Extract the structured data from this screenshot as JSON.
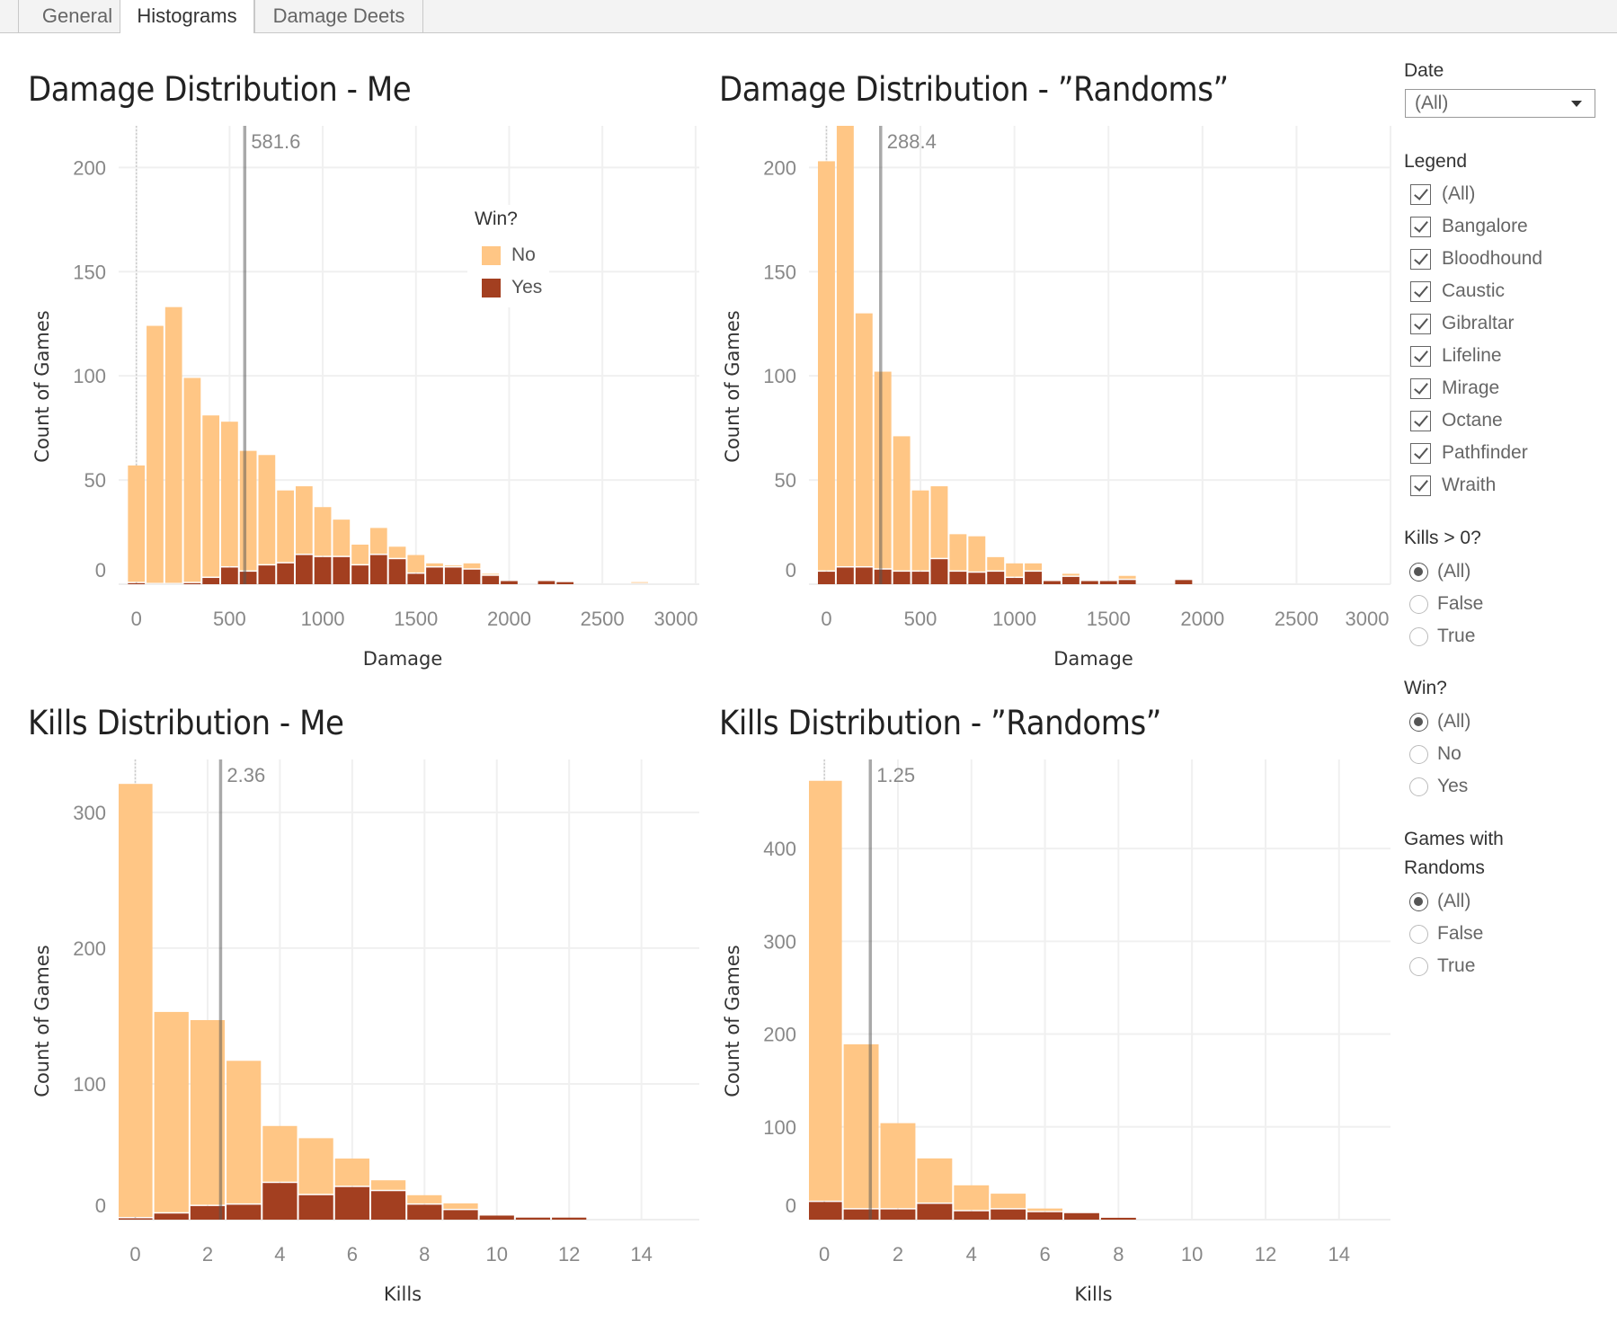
{
  "tabs": [
    {
      "label": "General"
    },
    {
      "label": "Histograms",
      "active": true
    },
    {
      "label": "Damage Deets"
    }
  ],
  "colors": {
    "no": "#FFC685",
    "yes": "#A33F20",
    "mean_line": "#555555"
  },
  "legend": {
    "title": "Win?",
    "items": [
      {
        "label": "No",
        "color": "#FFC685"
      },
      {
        "label": "Yes",
        "color": "#A33F20"
      }
    ]
  },
  "charts": [
    {
      "title": "Damage Distribution - Me",
      "ylabel": "Count of Games",
      "xlabel": "Damage",
      "mean_label": "581.6"
    },
    {
      "title": "Damage Distribution  - ”Randoms”",
      "ylabel": "Count of Games",
      "xlabel": "Damage",
      "mean_label": "288.4"
    },
    {
      "title": "Kills Distribution - Me",
      "ylabel": "Count of Games",
      "xlabel": "Kills",
      "mean_label": "2.36"
    },
    {
      "title": "Kills Distribution - ”Randoms”",
      "ylabel": "Count of Games",
      "xlabel": "Kills",
      "mean_label": "1.25"
    }
  ],
  "chart_data": [
    {
      "type": "bar",
      "stacked": true,
      "title": "Damage Distribution - Me",
      "xlabel": "Damage",
      "ylabel": "Count of Games",
      "bin_width": 100,
      "x": [
        0,
        100,
        200,
        300,
        400,
        500,
        600,
        700,
        800,
        900,
        1000,
        1100,
        1200,
        1300,
        1400,
        1500,
        1600,
        1700,
        1800,
        1900,
        2000,
        2100,
        2200,
        2300,
        2400,
        2500,
        2600,
        2700
      ],
      "series": [
        {
          "name": "No",
          "values": [
            56.5,
            124,
            133,
            98.5,
            78,
            70,
            58,
            53,
            35,
            33,
            24,
            18,
            10,
            13,
            6,
            9,
            2,
            1,
            3,
            1,
            0,
            0,
            0,
            0,
            0,
            0.4,
            0,
            1
          ]
        },
        {
          "name": "Yes",
          "values": [
            0.5,
            0,
            0,
            0.5,
            3,
            8,
            6,
            9,
            10,
            14,
            13,
            13,
            9,
            14,
            12,
            5,
            8,
            8,
            7,
            4,
            1.5,
            0,
            1.5,
            1,
            0,
            0,
            0,
            0
          ]
        }
      ],
      "mean": 581.6,
      "xlim": [
        -95,
        3020
      ],
      "ylim": [
        0,
        220
      ],
      "xticks": [
        "0",
        "500",
        "1000",
        "1500",
        "2000",
        "2500",
        "3000"
      ],
      "yticks": [
        "0",
        "50",
        "100",
        "150",
        "200"
      ],
      "grid": true,
      "legend": "top-right"
    },
    {
      "type": "bar",
      "stacked": true,
      "title": "Damage Distribution  - ”Randoms”",
      "xlabel": "Damage",
      "ylabel": "Count of Games",
      "bin_width": 100,
      "x": [
        0,
        100,
        200,
        300,
        400,
        500,
        600,
        700,
        800,
        900,
        1000,
        1100,
        1200,
        1300,
        1400,
        1500,
        1600,
        1700,
        1800,
        1900
      ],
      "series": [
        {
          "name": "No",
          "values": [
            197,
            237,
            122,
            95,
            65,
            39,
            35,
            18,
            17.5,
            7,
            7,
            4,
            0,
            1.5,
            0,
            0,
            2,
            0,
            0.4,
            0
          ]
        },
        {
          "name": "Yes",
          "values": [
            6,
            8,
            8,
            7,
            6,
            6,
            12,
            6,
            5.5,
            6,
            3,
            6,
            1.5,
            3.5,
            1.5,
            1.5,
            2,
            0,
            0,
            2
          ]
        }
      ],
      "mean": 288.4,
      "xlim": [
        -93,
        3000
      ],
      "ylim": [
        0,
        220
      ],
      "xticks": [
        "0",
        "500",
        "1000",
        "1500",
        "2000",
        "2500",
        "3000"
      ],
      "yticks": [
        "0",
        "50",
        "100",
        "150",
        "200"
      ],
      "grid": true
    },
    {
      "type": "bar",
      "stacked": true,
      "title": "Kills Distribution - Me",
      "xlabel": "Kills",
      "ylabel": "Count of Games",
      "bin_width": 1,
      "x": [
        0,
        1,
        2,
        3,
        4,
        5,
        6,
        7,
        8,
        9,
        10,
        11,
        12
      ],
      "series": [
        {
          "name": "No",
          "values": [
            320,
            148.5,
            137,
            106,
            42,
            42,
            21,
            8,
            7,
            5,
            0,
            0,
            0
          ]
        },
        {
          "name": "Yes",
          "values": [
            1,
            4.5,
            10,
            11,
            27,
            18,
            24,
            21,
            11,
            7,
            3,
            1.5,
            1.5
          ]
        }
      ],
      "mean": 2.36,
      "xlim": [
        -0.46,
        15.6
      ],
      "ylim": [
        0,
        339
      ],
      "xticks": [
        "0",
        "2",
        "4",
        "6",
        "8",
        "10",
        "12",
        "14"
      ],
      "yticks": [
        "0",
        "100",
        "200",
        "300"
      ],
      "grid": true
    },
    {
      "type": "bar",
      "stacked": true,
      "title": "Kills Distribution - ”Randoms”",
      "xlabel": "Kills",
      "ylabel": "Count of Games",
      "bin_width": 1,
      "x": [
        0,
        1,
        2,
        3,
        4,
        5,
        6,
        7,
        8
      ],
      "series": [
        {
          "name": "No",
          "values": [
            454,
            178,
            93,
            49,
            28,
            17,
            4,
            0,
            1
          ]
        },
        {
          "name": "Yes",
          "values": [
            19,
            11,
            11,
            17,
            9,
            11,
            8,
            7,
            2
          ]
        }
      ],
      "mean": 1.25,
      "xlim": [
        -0.42,
        15.4
      ],
      "ylim": [
        0,
        496
      ],
      "xticks": [
        "0",
        "2",
        "4",
        "6",
        "8",
        "10",
        "12",
        "14"
      ],
      "yticks": [
        "0",
        "100",
        "200",
        "300",
        "400"
      ],
      "grid": true
    }
  ],
  "sidebar": {
    "date": {
      "label": "Date",
      "value": "(All)"
    },
    "legend_filter": {
      "label": "Legend",
      "items": [
        "(All)",
        "Bangalore",
        "Bloodhound",
        "Caustic",
        "Gibraltar",
        "Lifeline",
        "Mirage",
        "Octane",
        "Pathfinder",
        "Wraith"
      ]
    },
    "kills": {
      "label": "Kills > 0?",
      "options": [
        "(All)",
        "False",
        "True"
      ],
      "selected": "(All)"
    },
    "win": {
      "label": "Win?",
      "options": [
        "(All)",
        "No",
        "Yes"
      ],
      "selected": "(All)"
    },
    "randoms": {
      "label_line1": "Games with",
      "label_line2": "Randoms",
      "options": [
        "(All)",
        "False",
        "True"
      ],
      "selected": "(All)"
    }
  }
}
